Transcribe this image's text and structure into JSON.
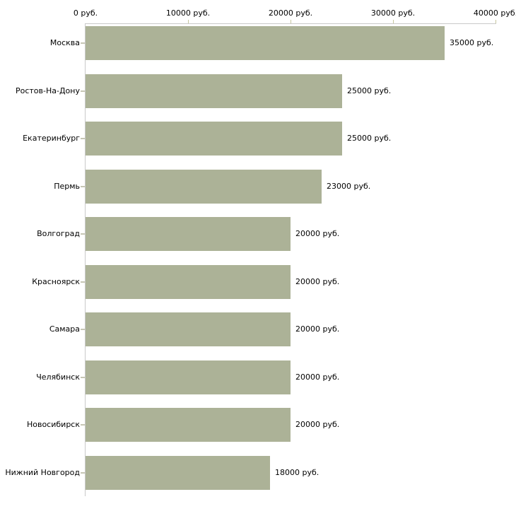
{
  "chart_data": {
    "type": "bar",
    "orientation": "horizontal",
    "title": "",
    "xlabel": "",
    "ylabel": "",
    "unit": "руб.",
    "categories": [
      "Москва",
      "Ростов-На-Дону",
      "Екатеринбург",
      "Пермь",
      "Волгоград",
      "Красноярск",
      "Самара",
      "Челябинск",
      "Новосибирск",
      "Нижний Новгород"
    ],
    "values": [
      35000,
      25000,
      25000,
      23000,
      20000,
      20000,
      20000,
      20000,
      20000,
      18000
    ],
    "value_labels": [
      "35000 руб.",
      "25000 руб.",
      "25000 руб.",
      "23000 руб.",
      "20000 руб.",
      "20000 руб.",
      "20000 руб.",
      "20000 руб.",
      "20000 руб.",
      "18000 руб."
    ],
    "x_axis": {
      "position": "top",
      "min": 0,
      "max": 40000,
      "ticks": [
        0,
        10000,
        20000,
        30000,
        40000
      ],
      "tick_labels": [
        "0 руб.",
        "10000 руб.",
        "20000 руб.",
        "30000 руб.",
        "40000 руб."
      ]
    },
    "grid": false,
    "legend": false,
    "colors": {
      "bar": "#acb297",
      "axis_line": "#c9c9c9",
      "top_tick": "#c6c69e",
      "left_tick": "#c6c6b4",
      "text": "#000000",
      "background": "#ffffff"
    }
  }
}
